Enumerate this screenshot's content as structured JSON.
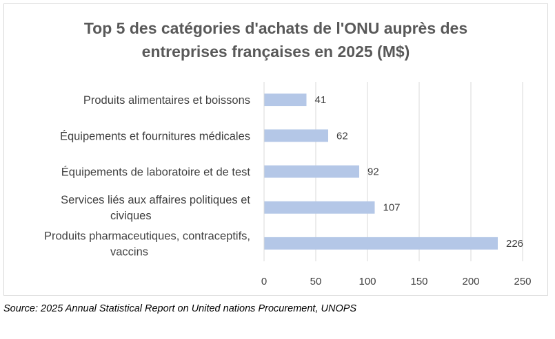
{
  "chart_data": {
    "type": "bar",
    "orientation": "horizontal",
    "title_lines": [
      "Top 5 des catégories d'achats de l'ONU auprès des",
      "entreprises françaises en 2025 (M$)"
    ],
    "categories": [
      [
        "Produits alimentaires et boissons"
      ],
      [
        "Équipements et fournitures médicales"
      ],
      [
        "Équipements de laboratoire et de test"
      ],
      [
        "Services liés aux affaires politiques et",
        "civiques"
      ],
      [
        "Produits pharmaceutiques, contraceptifs,",
        "vaccins"
      ]
    ],
    "values": [
      41,
      62,
      92,
      107,
      226
    ],
    "data_labels": [
      "41",
      "62",
      "92",
      "107",
      "226"
    ],
    "xlim": [
      0,
      250
    ],
    "x_ticks": [
      0,
      50,
      100,
      150,
      200,
      250
    ],
    "x_tick_labels": [
      "0",
      "50",
      "100",
      "150",
      "200",
      "250"
    ],
    "xlabel": "",
    "ylabel": "",
    "grid": "vertical",
    "legend": "none",
    "bar_color": "#b4c7e7",
    "grid_color": "#d9d9d9",
    "text_color": "#404040"
  },
  "source": "Source: 2025 Annual Statistical Report on United nations Procurement, UNOPS"
}
